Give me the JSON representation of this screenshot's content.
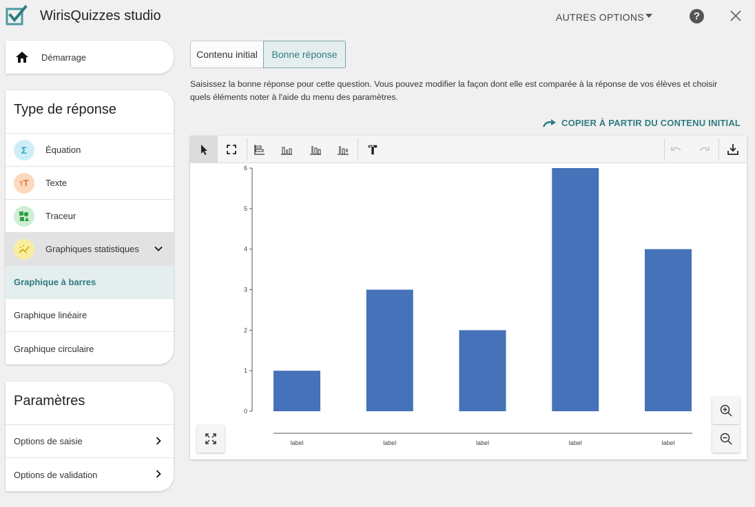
{
  "header": {
    "app_title": "WirisQuizzes studio",
    "more_options": "AUTRES OPTIONS",
    "help_glyph": "?"
  },
  "sidebar": {
    "home_label": "Démarrage",
    "type_card": {
      "title": "Type de réponse",
      "items": [
        {
          "label": "Équation",
          "icon": "sigma-icon",
          "glyph": "Σ"
        },
        {
          "label": "Texte",
          "icon": "text-icon",
          "glyph": "T"
        },
        {
          "label": "Traceur",
          "icon": "graph-icon",
          "glyph": ""
        },
        {
          "label": "Graphiques statistiques",
          "icon": "statistics-icon",
          "glyph": ""
        }
      ],
      "sub_items": [
        {
          "label": "Graphique à barres"
        },
        {
          "label": "Graphique linéaire"
        },
        {
          "label": "Graphique circulaire"
        }
      ]
    },
    "params_card": {
      "title": "Paramètres",
      "items": [
        {
          "label": "Options de saisie"
        },
        {
          "label": "Options de validation"
        }
      ]
    }
  },
  "tabs": {
    "initial": "Contenu initial",
    "answer": "Bonne réponse"
  },
  "instructions": "Saisissez la bonne réponse pour cette question. Vous pouvez modifier la façon dont elle est comparée à la réponse de vos élèves et choisir quels éléments noter à l'aide du menu des paramètres.",
  "copy_link": "COPIER À PARTIR DU CONTENU INITIAL",
  "colors": {
    "accent": "#2f7c80",
    "bar": "#4572b8",
    "equation_icon_bg": "#cdeef5",
    "text_icon_bg": "#fbd9bf",
    "plotter_icon_bg": "#cfeed4",
    "stats_icon_bg": "#f8eea0"
  },
  "chart_data": {
    "type": "bar",
    "categories": [
      "label",
      "label",
      "label",
      "label",
      "label"
    ],
    "values": [
      1,
      3,
      2,
      6,
      4
    ],
    "ylim": [
      0,
      6
    ],
    "yticks": [
      0,
      1,
      2,
      3,
      4,
      5,
      6
    ],
    "xlabel": "",
    "ylabel": ""
  }
}
